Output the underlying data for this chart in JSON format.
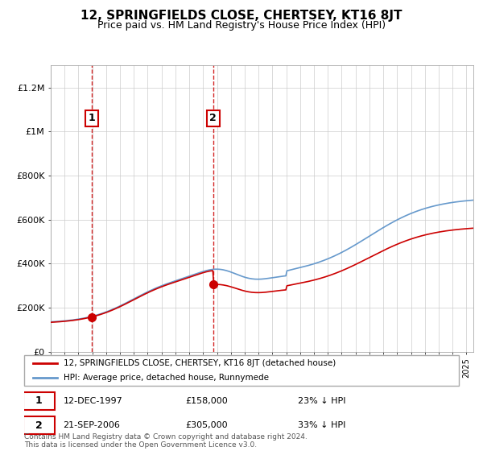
{
  "title": "12, SPRINGFIELDS CLOSE, CHERTSEY, KT16 8JT",
  "subtitle": "Price paid vs. HM Land Registry's House Price Index (HPI)",
  "ylabel_ticks": [
    "£0",
    "£200K",
    "£400K",
    "£600K",
    "£800K",
    "£1M",
    "£1.2M"
  ],
  "ytick_values": [
    0,
    200000,
    400000,
    600000,
    800000,
    1000000,
    1200000
  ],
  "ylim": [
    0,
    1300000
  ],
  "sale1_date_num": 1997.95,
  "sale1_price": 158000,
  "sale1_label": "1",
  "sale1_date_str": "12-DEC-1997",
  "sale1_price_str": "£158,000",
  "sale1_hpi_str": "23% ↓ HPI",
  "sale2_date_num": 2006.72,
  "sale2_price": 305000,
  "sale2_label": "2",
  "sale2_date_str": "21-SEP-2006",
  "sale2_price_str": "£305,000",
  "sale2_hpi_str": "33% ↓ HPI",
  "legend_label1": "12, SPRINGFIELDS CLOSE, CHERTSEY, KT16 8JT (detached house)",
  "legend_label2": "HPI: Average price, detached house, Runnymede",
  "footer": "Contains HM Land Registry data © Crown copyright and database right 2024.\nThis data is licensed under the Open Government Licence v3.0.",
  "line_color_red": "#cc0000",
  "line_color_blue": "#6699cc",
  "grid_color": "#cccccc",
  "xlim_start": 1995.0,
  "xlim_end": 2025.5
}
